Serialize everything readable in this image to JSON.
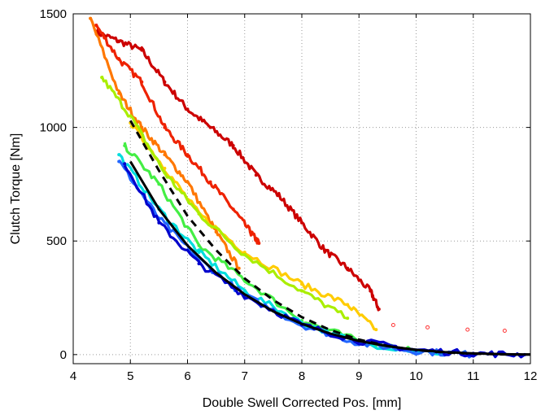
{
  "chart_data": {
    "type": "scatter",
    "title": "",
    "xlabel": "Double Swell Corrected Pos. [mm]",
    "ylabel": "Clutch Torque [Nm]",
    "xlim": [
      4,
      12
    ],
    "ylim": [
      -40,
      1500
    ],
    "xticks": [
      4,
      5,
      6,
      7,
      8,
      9,
      10,
      11,
      12
    ],
    "yticks": [
      0,
      500,
      1000,
      1500
    ],
    "grid": true,
    "legend": "none",
    "series": [
      {
        "color": "#cc0000",
        "x": [
          4.4,
          4.8,
          5.2,
          5.6,
          6.0,
          6.4,
          6.8,
          7.2,
          7.6,
          8.0,
          8.4,
          8.8,
          9.2,
          9.35
        ],
        "y": [
          1420,
          1380,
          1340,
          1200,
          1080,
          1000,
          920,
          790,
          700,
          580,
          460,
          380,
          280,
          200
        ]
      },
      {
        "color": "#ee2200",
        "x": [
          4.4,
          4.8,
          5.2,
          5.6,
          6.0,
          6.4,
          6.8,
          7.1,
          7.25
        ],
        "y": [
          1450,
          1300,
          1200,
          1000,
          880,
          760,
          640,
          540,
          490
        ]
      },
      {
        "color": "#ff7700",
        "x": [
          4.3,
          4.8,
          5.2,
          5.6,
          6.0,
          6.5,
          6.9
        ],
        "y": [
          1480,
          1150,
          1000,
          880,
          760,
          540,
          380
        ]
      },
      {
        "color": "#ffcc00",
        "x": [
          5.0,
          5.6,
          6.2,
          7.0,
          8.0,
          8.8,
          9.3
        ],
        "y": [
          1020,
          820,
          620,
          450,
          310,
          220,
          110
        ]
      },
      {
        "color": "#aaee00",
        "x": [
          4.5,
          5.0,
          5.6,
          6.2,
          7.0,
          8.0,
          8.8
        ],
        "y": [
          1220,
          1050,
          800,
          620,
          440,
          280,
          160
        ]
      },
      {
        "color": "#44ee44",
        "x": [
          4.9,
          5.5,
          6.2,
          7.0,
          8.0,
          9.0,
          10.0
        ],
        "y": [
          920,
          750,
          480,
          330,
          150,
          60,
          20
        ]
      },
      {
        "color": "#00dddd",
        "x": [
          4.8,
          5.5,
          6.2,
          7.0,
          8.0,
          9.0,
          10.5
        ],
        "y": [
          880,
          640,
          450,
          280,
          140,
          50,
          5
        ]
      },
      {
        "color": "#2266ff",
        "x": [
          4.8,
          5.5,
          6.2,
          7.0,
          8.0,
          9.0,
          10.0,
          11.0
        ],
        "y": [
          850,
          600,
          420,
          260,
          130,
          50,
          15,
          0
        ]
      },
      {
        "color": "#0000cc",
        "x": [
          4.9,
          5.5,
          6.2,
          7.0,
          8.0,
          9.0,
          10.0,
          11.0,
          11.9
        ],
        "y": [
          840,
          580,
          400,
          260,
          130,
          60,
          20,
          5,
          0
        ]
      }
    ],
    "outlier_points": {
      "color": "#ff3333",
      "x": [
        9.6,
        10.2,
        10.9,
        11.55
      ],
      "y": [
        130,
        120,
        110,
        105
      ]
    },
    "fit_curves": [
      {
        "style": "solid",
        "color": "#000000",
        "x": [
          5.0,
          5.5,
          6.0,
          6.5,
          7.0,
          7.5,
          8.0,
          8.5,
          9.0,
          9.5,
          10.0,
          10.5,
          11.0,
          11.5,
          12.0
        ],
        "y": [
          850,
          640,
          480,
          360,
          265,
          190,
          135,
          92,
          60,
          37,
          21,
          11,
          5,
          2,
          0
        ]
      },
      {
        "style": "dashed",
        "color": "#000000",
        "x": [
          5.0,
          5.5,
          6.0,
          6.5,
          7.0,
          7.5,
          8.0,
          8.5,
          9.0,
          9.5,
          10.0,
          10.5,
          11.0,
          11.5,
          12.0
        ],
        "y": [
          1030,
          810,
          610,
          460,
          335,
          240,
          165,
          108,
          66,
          38,
          20,
          9,
          4,
          1,
          0
        ]
      }
    ]
  }
}
